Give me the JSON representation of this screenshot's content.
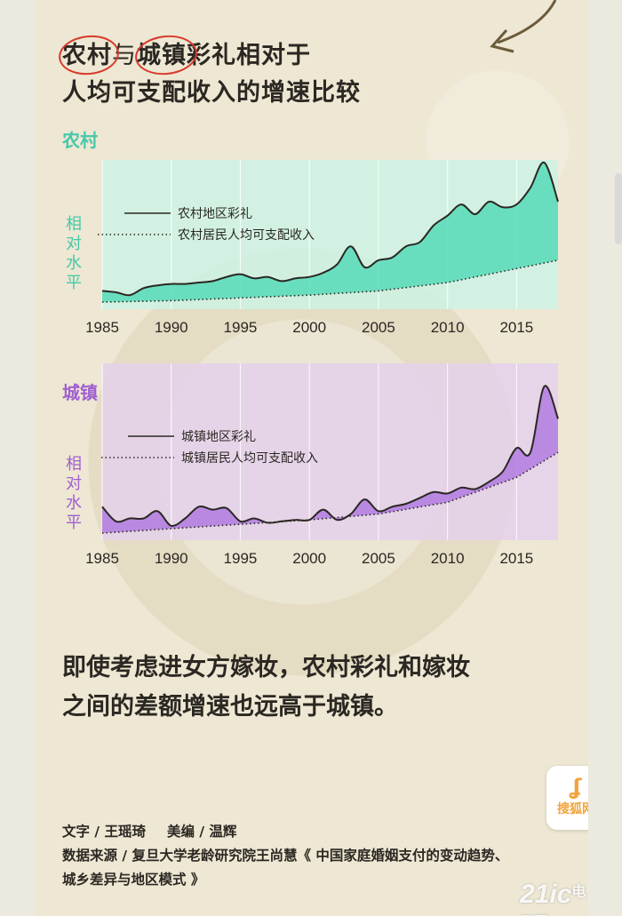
{
  "title": {
    "line1_parts": [
      "农村",
      "与",
      "城镇",
      "彩礼相对于"
    ],
    "line2": "人均可支配收入的增速比较"
  },
  "sections": {
    "rural_label": "农村",
    "urban_label": "城镇"
  },
  "colors": {
    "rural_fill": "#57dbb8",
    "urban_fill": "#b27be0",
    "rural_label": "#45c9a9",
    "urban_label": "#a15fd0",
    "circle": "#d8392b",
    "text": "#2b2722"
  },
  "chart_data": [
    {
      "type": "line",
      "section": "农村",
      "ylabel": "相对水平",
      "x_ticks": [
        1985,
        1990,
        1995,
        2000,
        2005,
        2010,
        2015
      ],
      "xlim": [
        1985,
        2018
      ],
      "ylim": [
        0,
        100
      ],
      "grid": "vertical",
      "legend_position": "top-left",
      "series": [
        {
          "name": "农村地区彩礼",
          "style": "solid-filled",
          "x": [
            1985,
            1986,
            1987,
            1988,
            1989,
            1990,
            1991,
            1992,
            1993,
            1994,
            1995,
            1996,
            1997,
            1998,
            1999,
            2000,
            2001,
            2002,
            2003,
            2004,
            2005,
            2006,
            2007,
            2008,
            2009,
            2010,
            2011,
            2012,
            2013,
            2014,
            2015,
            2016,
            2017,
            2018
          ],
          "values": [
            8,
            7,
            5,
            10,
            12,
            13,
            13,
            14,
            15,
            18,
            20,
            17,
            18,
            15,
            17,
            18,
            21,
            27,
            40,
            25,
            30,
            32,
            40,
            43,
            55,
            62,
            70,
            63,
            72,
            68,
            70,
            82,
            100,
            72
          ]
        },
        {
          "name": "农村居民人均可支配收入",
          "style": "dotted",
          "x": [
            1985,
            1990,
            1995,
            2000,
            2005,
            2010,
            2015,
            2018
          ],
          "values": [
            0,
            1,
            3,
            5,
            8,
            14,
            24,
            30
          ]
        }
      ]
    },
    {
      "type": "line",
      "section": "城镇",
      "ylabel": "相对水平",
      "x_ticks": [
        1985,
        1990,
        1995,
        2000,
        2005,
        2010,
        2015
      ],
      "xlim": [
        1985,
        2018
      ],
      "ylim": [
        0,
        100
      ],
      "grid": "vertical",
      "legend_position": "top-left",
      "series": [
        {
          "name": "城镇地区彩礼",
          "style": "solid-filled",
          "x": [
            1985,
            1986,
            1987,
            1988,
            1989,
            1990,
            1991,
            1992,
            1993,
            1994,
            1995,
            1996,
            1997,
            1998,
            1999,
            2000,
            2001,
            2002,
            2003,
            2004,
            2005,
            2006,
            2007,
            2008,
            2009,
            2010,
            2011,
            2012,
            2013,
            2014,
            2015,
            2016,
            2017,
            2018
          ],
          "values": [
            18,
            8,
            10,
            10,
            15,
            5,
            10,
            18,
            16,
            17,
            8,
            10,
            7,
            8,
            9,
            9,
            16,
            9,
            13,
            23,
            15,
            18,
            20,
            24,
            28,
            27,
            31,
            30,
            35,
            42,
            58,
            55,
            100,
            78
          ]
        },
        {
          "name": "城镇居民人均可支配收入",
          "style": "dotted",
          "x": [
            1985,
            1990,
            1995,
            2000,
            2005,
            2010,
            2015,
            2018
          ],
          "values": [
            0,
            3,
            6,
            9,
            13,
            21,
            38,
            55
          ]
        }
      ]
    }
  ],
  "body_text": {
    "line1": "即使考虑进女方嫁妆，农村彩礼和嫁妆",
    "line2": "之间的差额增速也远高于城镇。"
  },
  "credits": {
    "text_label": "文字 / 王瑶琦",
    "design_label": "美编 / 温辉",
    "source_line1": "数据来源 / 复旦大学老龄研究院王尚慧《 中国家庭婚姻支付的变动趋势、",
    "source_line2": "城乡差异与地区模式 》"
  },
  "badge": {
    "icon": "sohu-icon",
    "text": "搜狐网"
  },
  "watermark": {
    "main": "21ic",
    "cn": "电子网"
  }
}
